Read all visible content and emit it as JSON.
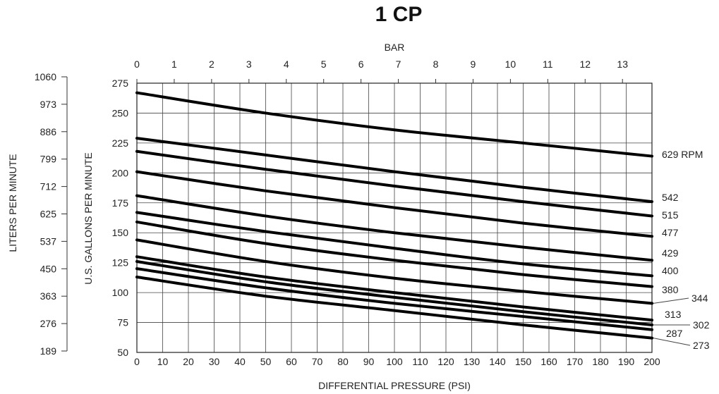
{
  "chart_data": {
    "type": "line",
    "title": "1 CP",
    "xlabel": "DIFFERENTIAL PRESSURE (PSI)",
    "ylabel": "U.S. GALLONS PER MINUTE",
    "x2label": "BAR",
    "y2label": "LITERS PER MINUTE",
    "xlim": [
      0,
      200
    ],
    "ylim": [
      50,
      275
    ],
    "x_ticks": [
      0,
      10,
      20,
      30,
      40,
      50,
      60,
      70,
      80,
      90,
      100,
      110,
      120,
      130,
      140,
      150,
      160,
      170,
      180,
      190,
      200
    ],
    "y_ticks": [
      50,
      75,
      100,
      125,
      150,
      175,
      200,
      225,
      250,
      275
    ],
    "bar_ticks": [
      0,
      1,
      2,
      3,
      4,
      5,
      6,
      7,
      8,
      9,
      10,
      11,
      12,
      13
    ],
    "lpm_ticks": [
      "1060",
      "973",
      "886",
      "799",
      "712",
      "625",
      "537",
      "450",
      "363",
      "276",
      "189"
    ],
    "grid": true,
    "x": [
      0,
      50,
      100,
      150,
      200
    ],
    "series": [
      {
        "name": "629 RPM",
        "values": [
          267,
          250,
          236,
          225,
          214
        ]
      },
      {
        "name": "542",
        "values": [
          229,
          215,
          201,
          188,
          176
        ]
      },
      {
        "name": "515",
        "values": [
          218,
          203,
          189,
          176,
          164
        ]
      },
      {
        "name": "477",
        "values": [
          201,
          185,
          171,
          158,
          147
        ]
      },
      {
        "name": "429",
        "values": [
          181,
          164,
          150,
          138,
          127
        ]
      },
      {
        "name": "400",
        "values": [
          167,
          151,
          137,
          124,
          114
        ]
      },
      {
        "name": "380",
        "values": [
          159,
          141,
          127,
          115,
          105
        ]
      },
      {
        "name": "344",
        "values": [
          144,
          126,
          112,
          101,
          91
        ]
      },
      {
        "name": "313",
        "values": [
          130,
          113,
          100,
          88,
          77
        ]
      },
      {
        "name": "302",
        "values": [
          126,
          109,
          96,
          84,
          73
        ]
      },
      {
        "name": "287",
        "values": [
          120,
          104,
          91,
          80,
          69
        ]
      },
      {
        "name": "273",
        "values": [
          113,
          97,
          85,
          73,
          62
        ]
      }
    ]
  }
}
